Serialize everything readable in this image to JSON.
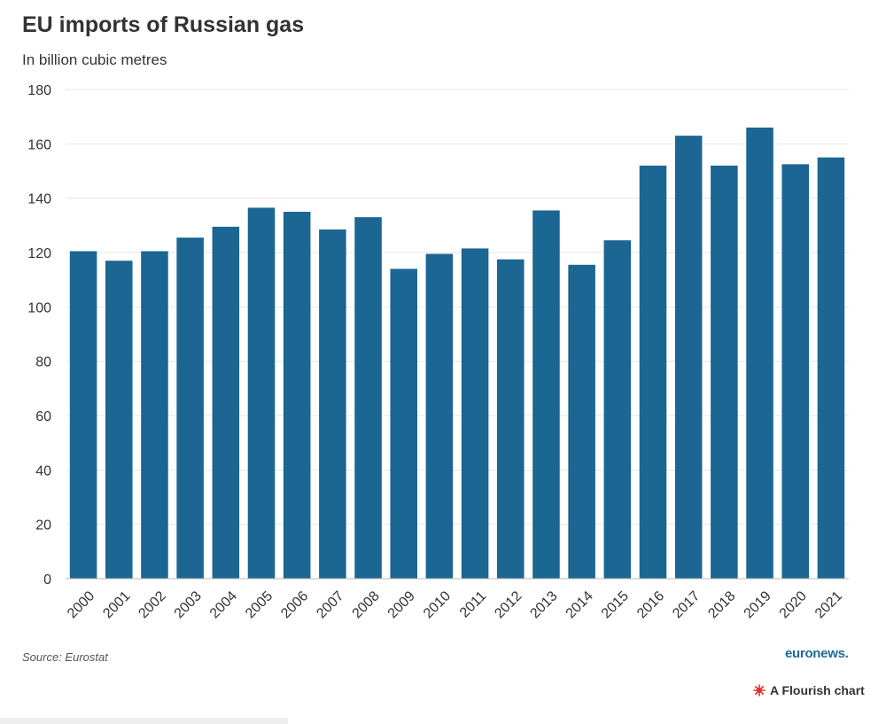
{
  "header": {
    "title": "EU imports of Russian gas",
    "subtitle": "In billion cubic metres"
  },
  "footer": {
    "source": "Source: Eurostat",
    "brand": "euronews.",
    "flourish_label": "A Flourish chart",
    "flourish_icon": "flourish-logo-icon"
  },
  "colors": {
    "bar": "#1b6692",
    "brand": "#1c6b95",
    "flourish_icon": "#e62d2d"
  },
  "chart_data": {
    "type": "bar",
    "categories": [
      "2000",
      "2001",
      "2002",
      "2003",
      "2004",
      "2005",
      "2006",
      "2007",
      "2008",
      "2009",
      "2010",
      "2011",
      "2012",
      "2013",
      "2014",
      "2015",
      "2016",
      "2017",
      "2018",
      "2019",
      "2020",
      "2021"
    ],
    "values": [
      120.5,
      117,
      120.5,
      125.5,
      129.5,
      136.5,
      135,
      128.5,
      133,
      114,
      119.5,
      121.5,
      117.5,
      135.5,
      115.5,
      124.5,
      152,
      163,
      152,
      166,
      152.5,
      155
    ],
    "yticks": [
      0,
      20,
      40,
      60,
      80,
      100,
      120,
      140,
      160,
      180
    ],
    "ylim": [
      0,
      180
    ],
    "grid": true,
    "legend": "none"
  }
}
